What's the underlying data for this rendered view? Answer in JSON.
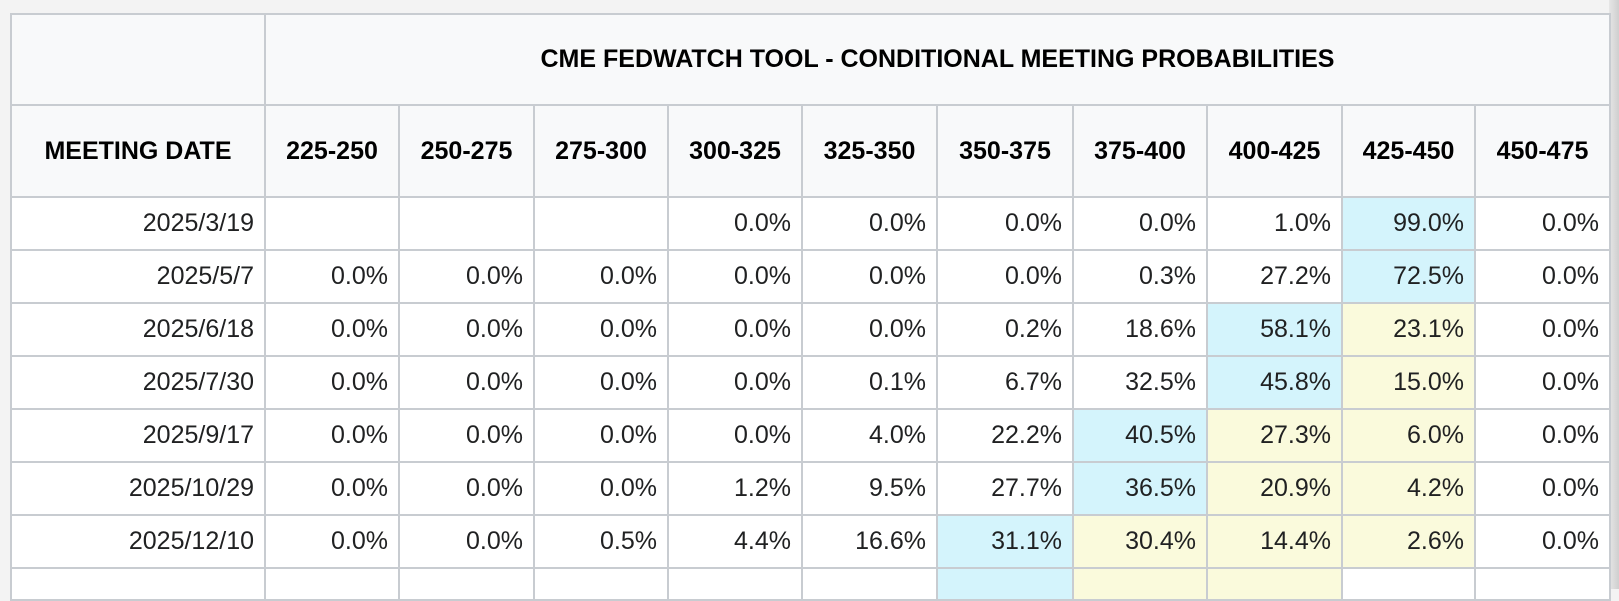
{
  "table": {
    "title": "CME FEDWATCH TOOL - CONDITIONAL MEETING PROBABILITIES",
    "date_header": "MEETING DATE",
    "columns": [
      "225-250",
      "250-275",
      "275-300",
      "300-325",
      "325-350",
      "350-375",
      "375-400",
      "400-425",
      "425-450",
      "450-475"
    ],
    "highlight_colors": {
      "max": "#d4f4fc",
      "secondary": "#fafadc"
    },
    "rows": [
      {
        "date": "2025/3/19",
        "values": [
          "",
          "",
          "",
          "0.0%",
          "0.0%",
          "0.0%",
          "0.0%",
          "1.0%",
          "99.0%",
          "0.0%"
        ],
        "hl": [
          "",
          "",
          "",
          "",
          "",
          "",
          "",
          "",
          "b",
          ""
        ]
      },
      {
        "date": "2025/5/7",
        "values": [
          "0.0%",
          "0.0%",
          "0.0%",
          "0.0%",
          "0.0%",
          "0.0%",
          "0.3%",
          "27.2%",
          "72.5%",
          "0.0%"
        ],
        "hl": [
          "",
          "",
          "",
          "",
          "",
          "",
          "",
          "",
          "b",
          ""
        ]
      },
      {
        "date": "2025/6/18",
        "values": [
          "0.0%",
          "0.0%",
          "0.0%",
          "0.0%",
          "0.0%",
          "0.2%",
          "18.6%",
          "58.1%",
          "23.1%",
          "0.0%"
        ],
        "hl": [
          "",
          "",
          "",
          "",
          "",
          "",
          "",
          "b",
          "y",
          ""
        ]
      },
      {
        "date": "2025/7/30",
        "values": [
          "0.0%",
          "0.0%",
          "0.0%",
          "0.0%",
          "0.1%",
          "6.7%",
          "32.5%",
          "45.8%",
          "15.0%",
          "0.0%"
        ],
        "hl": [
          "",
          "",
          "",
          "",
          "",
          "",
          "",
          "b",
          "y",
          ""
        ]
      },
      {
        "date": "2025/9/17",
        "values": [
          "0.0%",
          "0.0%",
          "0.0%",
          "0.0%",
          "4.0%",
          "22.2%",
          "40.5%",
          "27.3%",
          "6.0%",
          "0.0%"
        ],
        "hl": [
          "",
          "",
          "",
          "",
          "",
          "",
          "b",
          "y",
          "y",
          ""
        ]
      },
      {
        "date": "2025/10/29",
        "values": [
          "0.0%",
          "0.0%",
          "0.0%",
          "1.2%",
          "9.5%",
          "27.7%",
          "36.5%",
          "20.9%",
          "4.2%",
          "0.0%"
        ],
        "hl": [
          "",
          "",
          "",
          "",
          "",
          "",
          "b",
          "y",
          "y",
          ""
        ]
      },
      {
        "date": "2025/12/10",
        "values": [
          "0.0%",
          "0.0%",
          "0.5%",
          "4.4%",
          "16.6%",
          "31.1%",
          "30.4%",
          "14.4%",
          "2.6%",
          "0.0%"
        ],
        "hl": [
          "",
          "",
          "",
          "",
          "",
          "b",
          "y",
          "y",
          "y",
          ""
        ]
      }
    ]
  }
}
